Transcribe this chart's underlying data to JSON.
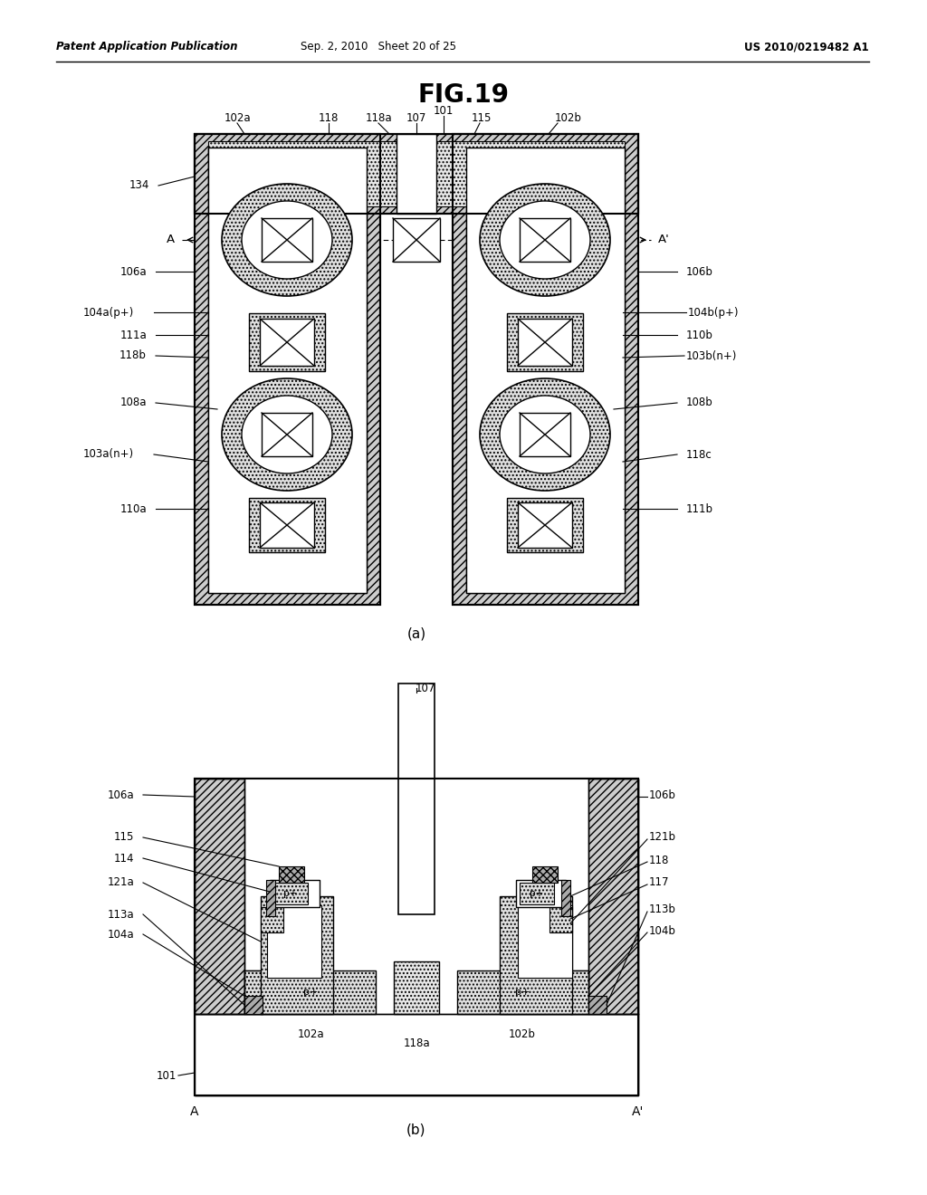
{
  "title": "FIG.19",
  "header_left": "Patent Application Publication",
  "header_mid": "Sep. 2, 2010   Sheet 20 of 25",
  "header_right": "US 2010/0219482 A1",
  "bg_color": "#ffffff",
  "black": "#000000",
  "white": "#ffffff",
  "gray_light": "#e8e8e8",
  "gray_med": "#cccccc",
  "gray_dark": "#aaaaaa"
}
